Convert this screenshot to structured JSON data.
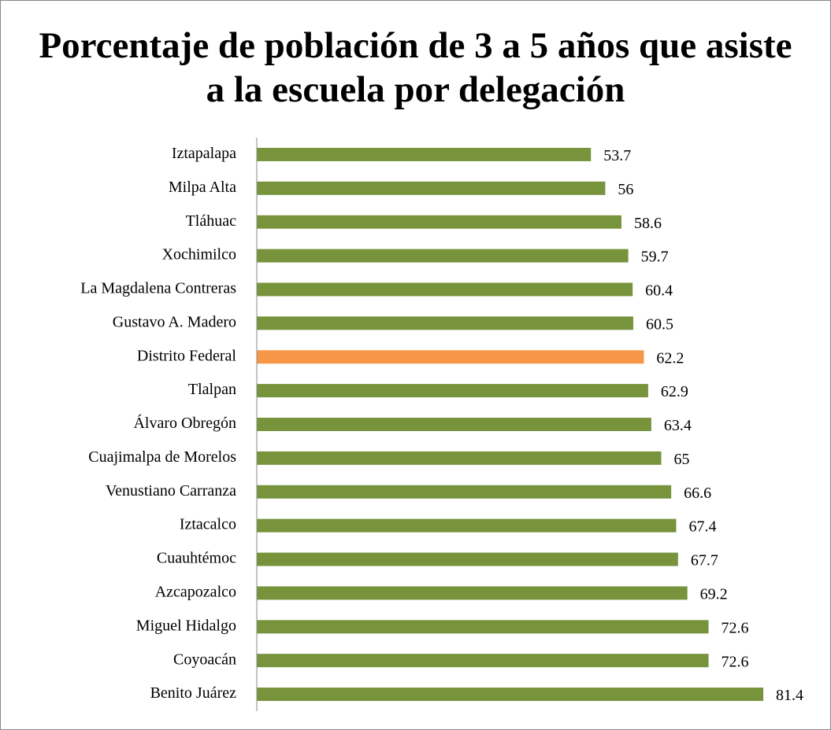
{
  "chart_data": {
    "type": "hbar",
    "title": "Porcentaje de población de 3 a 5 años que asiste a la escuela por delegación",
    "categories": [
      "Iztapalapa",
      "Milpa Alta",
      "Tláhuac",
      "Xochimilco",
      "La Magdalena Contreras",
      "Gustavo A. Madero",
      "Distrito Federal",
      "Tlalpan",
      "Álvaro Obregón",
      "Cuajimalpa de Morelos",
      "Venustiano Carranza",
      "Iztacalco",
      "Cuauhtémoc",
      "Azcapozalco",
      "Miguel Hidalgo",
      "Coyoacán",
      "Benito Juárez"
    ],
    "values": [
      53.7,
      56,
      58.6,
      59.7,
      60.4,
      60.5,
      62.2,
      62.9,
      63.4,
      65,
      66.6,
      67.4,
      67.7,
      69.2,
      72.6,
      72.6,
      81.4
    ],
    "colors": [
      "#77933c",
      "#77933c",
      "#77933c",
      "#77933c",
      "#77933c",
      "#77933c",
      "#f79646",
      "#77933c",
      "#77933c",
      "#77933c",
      "#77933c",
      "#77933c",
      "#77933c",
      "#77933c",
      "#77933c",
      "#77933c",
      "#77933c"
    ],
    "xlim": [
      0,
      90
    ]
  }
}
